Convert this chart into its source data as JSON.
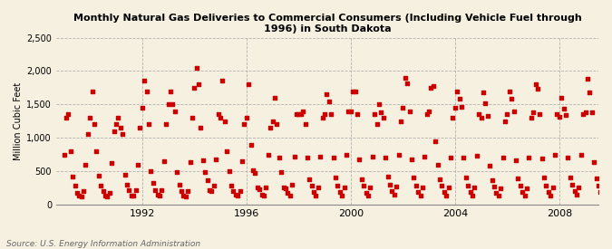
{
  "title": "Monthly Natural Gas Deliveries to Commercial Consumers (Including Vehicle Fuel through\n1996) in South Dakota",
  "ylabel": "Million Cubic Feet",
  "source": "Source: U.S. Energy Information Administration",
  "bg_color": "#f5f0e0",
  "dot_color": "#cc0000",
  "grid_color": "#aaaaaa",
  "ylim": [
    0,
    2500
  ],
  "yticks": [
    0,
    500,
    1000,
    1500,
    2000,
    2500
  ],
  "ytick_labels": [
    "0",
    "500",
    "1,000",
    "1,500",
    "2,000",
    "2,500"
  ],
  "x_start_year": 1989,
  "x_end_year": 2010,
  "xticks": [
    1992,
    1996,
    2000,
    2004,
    2008
  ],
  "data": [
    750,
    1300,
    1350,
    800,
    420,
    280,
    180,
    130,
    120,
    200,
    600,
    1050,
    1300,
    1700,
    1200,
    800,
    430,
    290,
    200,
    140,
    120,
    180,
    620,
    1100,
    1200,
    1300,
    1150,
    1050,
    440,
    300,
    210,
    140,
    130,
    210,
    600,
    1150,
    1450,
    1850,
    1700,
    1200,
    500,
    320,
    220,
    150,
    130,
    220,
    650,
    1200,
    1500,
    1700,
    1500,
    1400,
    480,
    300,
    200,
    140,
    120,
    200,
    640,
    1300,
    1750,
    2050,
    1800,
    1150,
    660,
    480,
    370,
    220,
    200,
    280,
    680,
    1350,
    1300,
    1850,
    1250,
    800,
    500,
    280,
    200,
    150,
    130,
    200,
    650,
    1200,
    1300,
    1800,
    900,
    510,
    470,
    260,
    230,
    150,
    130,
    260,
    750,
    1150,
    1250,
    1600,
    1200,
    700,
    490,
    260,
    240,
    170,
    140,
    300,
    720,
    1350,
    1350,
    1350,
    1400,
    1200,
    700,
    380,
    280,
    190,
    140,
    250,
    720,
    1300,
    1350,
    1650,
    1550,
    1350,
    700,
    400,
    290,
    190,
    140,
    260,
    750,
    1400,
    1400,
    1700,
    1700,
    1350,
    680,
    380,
    280,
    180,
    140,
    250,
    720,
    1350,
    1200,
    1500,
    1380,
    1300,
    700,
    420,
    300,
    200,
    150,
    270,
    750,
    1250,
    1450,
    1900,
    1820,
    1400,
    680,
    400,
    290,
    190,
    140,
    260,
    720,
    1350,
    1400,
    1750,
    1780,
    950,
    600,
    380,
    280,
    190,
    130,
    250,
    710,
    1300,
    1450,
    1700,
    1580,
    1460,
    700,
    400,
    290,
    190,
    140,
    260,
    730,
    1350,
    1300,
    1680,
    1520,
    1330,
    580,
    360,
    270,
    180,
    130,
    240,
    700,
    1250,
    1350,
    1700,
    1580,
    1400,
    660,
    390,
    280,
    190,
    130,
    240,
    710,
    1300,
    1380,
    1800,
    1730,
    1350,
    690,
    400,
    290,
    190,
    140,
    260,
    740,
    1350,
    1320,
    1600,
    1430,
    1340,
    700,
    410,
    300,
    200,
    150,
    260,
    740,
    1360,
    1380,
    1880,
    1680,
    1380,
    640,
    390,
    280,
    190,
    130,
    240,
    720,
    1350
  ]
}
